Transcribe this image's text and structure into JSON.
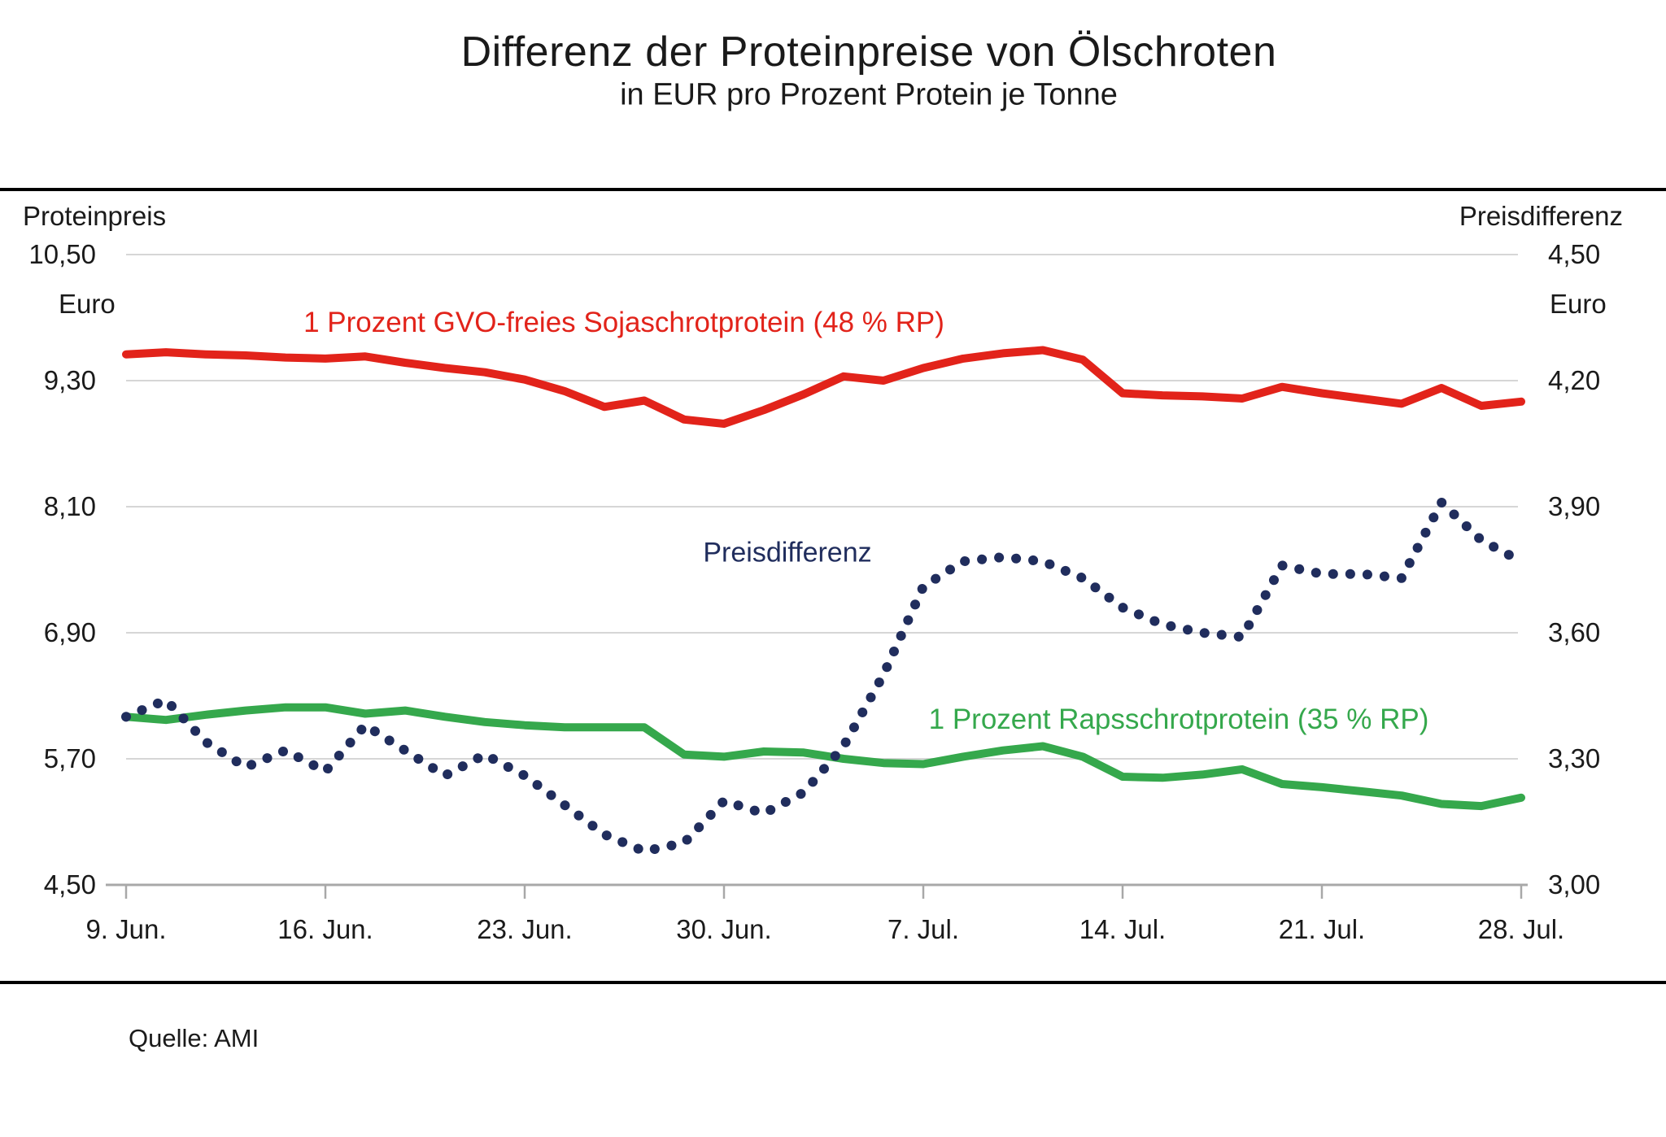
{
  "title": "Differenz der Proteinpreise von Ölschroten",
  "subtitle": "in EUR pro Prozent Protein je Tonne",
  "source": "Quelle: AMI",
  "left_axis": {
    "header": "Proteinpreis",
    "unit": "Euro",
    "tick_labels": [
      "10,50",
      "9,30",
      "8,10",
      "6,90",
      "5,70",
      "4,50"
    ],
    "tick_values": [
      10.5,
      9.3,
      8.1,
      6.9,
      5.7,
      4.5
    ]
  },
  "right_axis": {
    "header": "Preisdifferenz",
    "unit": "Euro",
    "tick_labels": [
      "4,50",
      "4,20",
      "3,90",
      "3,60",
      "3,30",
      "3,00"
    ],
    "tick_values": [
      4.5,
      4.2,
      3.9,
      3.6,
      3.3,
      3.0
    ]
  },
  "x_axis": {
    "tick_labels": [
      "9. Jun.",
      "16. Jun.",
      "23. Jun.",
      "30. Jun.",
      "7. Jul.",
      "14. Jul.",
      "21. Jul.",
      "28. Jul."
    ]
  },
  "colors": {
    "soja_red": "#e2231a",
    "raps_green": "#35a84c",
    "diff_navy": "#202d5d",
    "gridline": "#d6d6d6",
    "axis": "#a8a8a8",
    "text": "#1a1a1a"
  },
  "chart_data": {
    "type": "line",
    "title": "Differenz der Proteinpreise von Ölschroten",
    "subtitle": "in EUR pro Prozent Protein je Tonne",
    "grid": "horizontal",
    "legend_position": "inline-labels",
    "left_ylim": [
      4.5,
      10.5
    ],
    "right_ylim": [
      3.0,
      4.5
    ],
    "x": [
      "9. Jun.",
      "10. Jun.",
      "11. Jun.",
      "12. Jun.",
      "13. Jun.",
      "16. Jun.",
      "17. Jun.",
      "18. Jun.",
      "19. Jun.",
      "20. Jun.",
      "23. Jun.",
      "24. Jun.",
      "25. Jun.",
      "26. Jun.",
      "27. Jun.",
      "30. Jun.",
      "1. Jul.",
      "2. Jul.",
      "3. Jul.",
      "4. Jul.",
      "7. Jul.",
      "8. Jul.",
      "9. Jul.",
      "10. Jul.",
      "11. Jul.",
      "14. Jul.",
      "15. Jul.",
      "16. Jul.",
      "17. Jul.",
      "18. Jul.",
      "21. Jul.",
      "22. Jul.",
      "23. Jul.",
      "24. Jul.",
      "25. Jul.",
      "28. Jul."
    ],
    "series": [
      {
        "name": "1 Prozent GVO-freies Sojaschrotprotein (48 % RP)",
        "axis": "left",
        "style": "solid",
        "color": "#e2231a",
        "values": [
          9.55,
          9.57,
          9.55,
          9.54,
          9.52,
          9.51,
          9.53,
          9.47,
          9.42,
          9.38,
          9.31,
          9.2,
          9.05,
          9.11,
          8.93,
          8.89,
          9.02,
          9.17,
          9.34,
          9.3,
          9.42,
          9.51,
          9.56,
          9.59,
          9.5,
          9.18,
          9.16,
          9.15,
          9.13,
          9.24,
          9.18,
          9.13,
          9.08,
          9.23,
          9.06,
          9.1
        ]
      },
      {
        "name": "1 Prozent Rapsschrotprotein (35 % RP)",
        "axis": "left",
        "style": "solid",
        "color": "#35a84c",
        "values": [
          6.1,
          6.07,
          6.12,
          6.16,
          6.19,
          6.19,
          6.13,
          6.16,
          6.1,
          6.05,
          6.02,
          6.0,
          6.0,
          6.0,
          5.74,
          5.72,
          5.77,
          5.76,
          5.7,
          5.66,
          5.65,
          5.72,
          5.78,
          5.82,
          5.72,
          5.53,
          5.52,
          5.55,
          5.6,
          5.46,
          5.43,
          5.39,
          5.35,
          5.27,
          5.25,
          5.33
        ]
      },
      {
        "name": "Preisdifferenz",
        "axis": "right",
        "style": "dotted",
        "color": "#202d5d",
        "values": [
          3.4,
          3.44,
          3.34,
          3.28,
          3.32,
          3.27,
          3.38,
          3.32,
          3.26,
          3.31,
          3.26,
          3.19,
          3.12,
          3.08,
          3.1,
          3.2,
          3.17,
          3.22,
          3.33,
          3.5,
          3.71,
          3.77,
          3.78,
          3.77,
          3.73,
          3.66,
          3.62,
          3.6,
          3.59,
          3.76,
          3.74,
          3.74,
          3.73,
          3.91,
          3.82,
          3.77
        ]
      }
    ]
  }
}
